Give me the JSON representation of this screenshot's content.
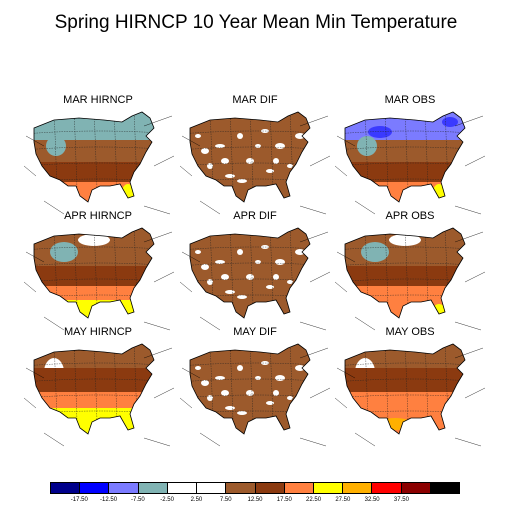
{
  "title": "Spring HIRNCP 10 Year Mean Min Temperature",
  "panels": [
    {
      "label": "MAR HIRNCP",
      "scheme": "hirncp",
      "month": "mar"
    },
    {
      "label": "MAR DIF",
      "scheme": "dif",
      "month": "mar"
    },
    {
      "label": "MAR OBS",
      "scheme": "obs",
      "month": "mar"
    },
    {
      "label": "APR HIRNCP",
      "scheme": "hirncp",
      "month": "apr"
    },
    {
      "label": "APR DIF",
      "scheme": "dif",
      "month": "apr"
    },
    {
      "label": "APR OBS",
      "scheme": "obs",
      "month": "apr"
    },
    {
      "label": "MAY HIRNCP",
      "scheme": "hirncp",
      "month": "may"
    },
    {
      "label": "MAY DIF",
      "scheme": "dif",
      "month": "may"
    },
    {
      "label": "MAY OBS",
      "scheme": "obs",
      "month": "may"
    }
  ],
  "colorbar": {
    "colors": [
      "#00008b",
      "#0000ff",
      "#7b7bff",
      "#80b3b3",
      "#ffffff",
      "#ffffff",
      "#9c5a2c",
      "#8b3a10",
      "#ff8040",
      "#ffff00",
      "#ffb000",
      "#ff0000",
      "#8b0000",
      "#000000"
    ],
    "ticks": [
      "-17.50",
      "-12.50",
      "-7.50",
      "-2.50",
      "2.50",
      "7.50",
      "12.50",
      "17.50",
      "22.50",
      "27.50",
      "32.50",
      "37.50"
    ]
  }
}
